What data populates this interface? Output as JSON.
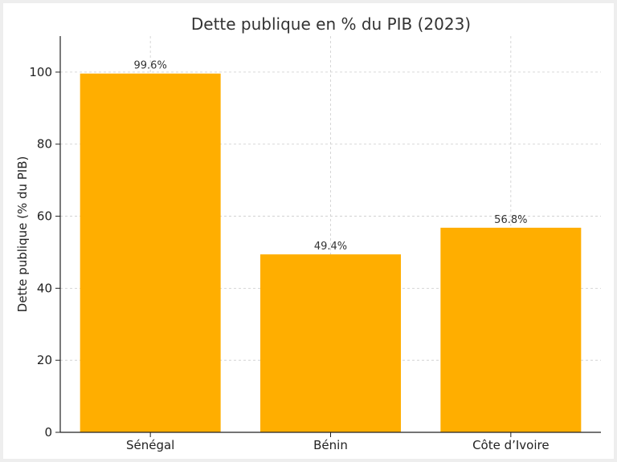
{
  "chart_data": {
    "type": "bar",
    "title": "Dette publique en % du PIB (2023)",
    "xlabel": "",
    "ylabel": "Dette publique (% du PIB)",
    "categories": [
      "Sénégal",
      "Bénin",
      "Côte d’Ivoire"
    ],
    "values": [
      99.6,
      49.4,
      56.8
    ],
    "data_labels": [
      "99.6%",
      "49.4%",
      "56.8%"
    ],
    "ylim": [
      0,
      110
    ],
    "yticks": [
      0,
      20,
      40,
      60,
      80,
      100
    ],
    "grid": true,
    "bar_color": "#FFAE00"
  }
}
